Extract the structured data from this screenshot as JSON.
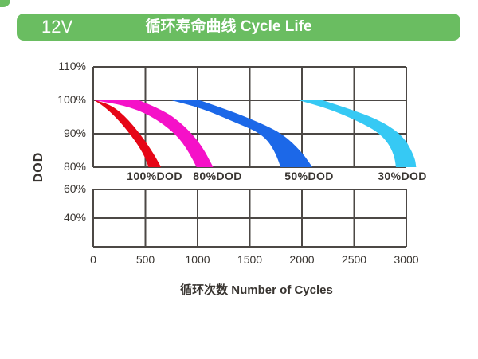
{
  "header": {
    "badge": "12V",
    "title": "循环寿命曲线 Cycle Life",
    "bg_color": "#6abd61",
    "text_color": "#ffffff"
  },
  "chart_data": {
    "type": "area",
    "title": "循环寿命曲线 Cycle Life",
    "xlabel": "循环次数 Number of Cycles",
    "ylabel": "DOD",
    "x_range": [
      0,
      3000
    ],
    "x_ticks": [
      0,
      500,
      1000,
      1500,
      2000,
      2500,
      3000
    ],
    "upper_panel_y_ticks": [
      "110%",
      "100%",
      "90%",
      "80%"
    ],
    "upper_panel_y_range_pct": [
      80,
      110
    ],
    "lower_panel_y_ticks": [
      "60%",
      "40%"
    ],
    "grid": true,
    "grid_color": "#4c4845",
    "legend_position": "between-panels",
    "series": [
      {
        "name": "100%DOD",
        "color": "#e60617",
        "cycles_to_80pct_capacity": [
          530,
          650
        ],
        "band_upper_edge": [
          [
            10,
            100
          ],
          [
            140,
            99.2
          ],
          [
            300,
            95.5
          ],
          [
            460,
            89.5
          ],
          [
            580,
            84
          ],
          [
            650,
            80
          ]
        ],
        "band_lower_edge": [
          [
            10,
            100
          ],
          [
            120,
            97.8
          ],
          [
            260,
            93.5
          ],
          [
            400,
            88
          ],
          [
            500,
            83
          ],
          [
            530,
            80
          ]
        ]
      },
      {
        "name": "80%DOD",
        "color": "#f511c8",
        "cycles_to_80pct_capacity": [
          990,
          1150
        ],
        "band_upper_edge": [
          [
            440,
            100
          ],
          [
            680,
            97
          ],
          [
            870,
            92.5
          ],
          [
            1030,
            87
          ],
          [
            1150,
            80
          ]
        ],
        "band_lower_edge": [
          [
            10,
            100
          ],
          [
            300,
            98.5
          ],
          [
            550,
            95.5
          ],
          [
            790,
            90
          ],
          [
            920,
            84.5
          ],
          [
            990,
            80
          ]
        ]
      },
      {
        "name": "50%DOD",
        "color": "#1c68e8",
        "cycles_to_80pct_capacity": [
          1795,
          2100
        ],
        "band_upper_edge": [
          [
            1020,
            100
          ],
          [
            1300,
            97
          ],
          [
            1580,
            93.5
          ],
          [
            1817,
            90
          ],
          [
            2000,
            84.5
          ],
          [
            2100,
            80
          ]
        ],
        "band_lower_edge": [
          [
            750,
            100
          ],
          [
            1050,
            97.5
          ],
          [
            1350,
            93.5
          ],
          [
            1620,
            90
          ],
          [
            1750,
            84.5
          ],
          [
            1795,
            80
          ]
        ]
      },
      {
        "name": "30%DOD",
        "color": "#36c9f4",
        "cycles_to_80pct_capacity": [
          2900,
          3095
        ],
        "band_upper_edge": [
          [
            2200,
            100
          ],
          [
            2500,
            97
          ],
          [
            2780,
            93.5
          ],
          [
            2980,
            89
          ],
          [
            3080,
            83
          ],
          [
            3095,
            80
          ]
        ],
        "band_lower_edge": [
          [
            1970,
            100
          ],
          [
            2250,
            97.5
          ],
          [
            2520,
            94
          ],
          [
            2760,
            90
          ],
          [
            2890,
            84
          ],
          [
            2900,
            80
          ]
        ]
      }
    ]
  }
}
